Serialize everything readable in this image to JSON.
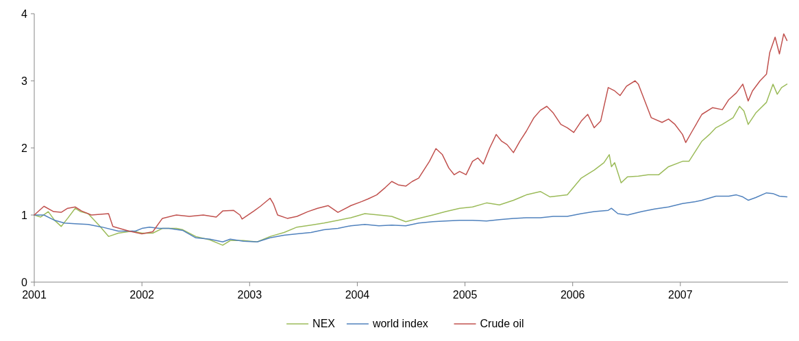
{
  "chart_data": {
    "type": "line",
    "xlim": [
      2001,
      2008
    ],
    "xticks": [
      2001,
      2002,
      2003,
      2004,
      2005,
      2006,
      2007
    ],
    "ylim": [
      0,
      4
    ],
    "yticks": [
      0,
      1,
      2,
      3,
      4
    ],
    "grid": false,
    "legend": "bottom",
    "series": [
      {
        "name": "NEX",
        "color": "#9bbb59",
        "x": [
          2001.0,
          2001.06,
          2001.13,
          2001.19,
          2001.25,
          2001.31,
          2001.38,
          2001.43,
          2001.5,
          2001.6,
          2001.69,
          2001.78,
          2001.91,
          2002.0,
          2002.1,
          2002.19,
          2002.32,
          2002.38,
          2002.5,
          2002.63,
          2002.75,
          2002.82,
          2002.94,
          2003.07,
          2003.19,
          2003.32,
          2003.44,
          2003.57,
          2003.69,
          2003.82,
          2003.94,
          2004.07,
          2004.2,
          2004.32,
          2004.45,
          2004.57,
          2004.7,
          2004.82,
          2004.95,
          2005.07,
          2005.2,
          2005.32,
          2005.45,
          2005.57,
          2005.7,
          2005.79,
          2005.95,
          2006.08,
          2006.2,
          2006.29,
          2006.34,
          2006.36,
          2006.39,
          2006.45,
          2006.51,
          2006.61,
          2006.7,
          2006.8,
          2006.89,
          2007.02,
          2007.08,
          2007.14,
          2007.2,
          2007.27,
          2007.33,
          2007.39,
          2007.49,
          2007.55,
          2007.59,
          2007.63,
          2007.7,
          2007.8,
          2007.86,
          2007.9,
          2007.94,
          2007.99
        ],
        "values": [
          1.0,
          0.97,
          1.05,
          0.92,
          0.83,
          0.95,
          1.1,
          1.05,
          1.02,
          0.85,
          0.68,
          0.73,
          0.76,
          0.73,
          0.73,
          0.8,
          0.8,
          0.78,
          0.68,
          0.63,
          0.55,
          0.62,
          0.62,
          0.6,
          0.68,
          0.74,
          0.82,
          0.85,
          0.88,
          0.92,
          0.96,
          1.02,
          1.0,
          0.98,
          0.9,
          0.95,
          1.0,
          1.05,
          1.1,
          1.12,
          1.18,
          1.15,
          1.22,
          1.3,
          1.35,
          1.27,
          1.3,
          1.55,
          1.67,
          1.78,
          1.9,
          1.72,
          1.78,
          1.48,
          1.57,
          1.58,
          1.6,
          1.6,
          1.72,
          1.8,
          1.8,
          1.95,
          2.1,
          2.2,
          2.3,
          2.35,
          2.45,
          2.62,
          2.55,
          2.35,
          2.52,
          2.68,
          2.95,
          2.8,
          2.9,
          2.95
        ]
      },
      {
        "name": "world index",
        "color": "#4f81bd",
        "x": [
          2001.0,
          2001.09,
          2001.19,
          2001.28,
          2001.38,
          2001.5,
          2001.63,
          2001.78,
          2001.94,
          2002.0,
          2002.07,
          2002.16,
          2002.25,
          2002.38,
          2002.5,
          2002.63,
          2002.75,
          2002.82,
          2002.94,
          2003.07,
          2003.19,
          2003.32,
          2003.44,
          2003.57,
          2003.69,
          2003.82,
          2003.94,
          2004.07,
          2004.2,
          2004.32,
          2004.45,
          2004.57,
          2004.7,
          2004.82,
          2004.95,
          2005.07,
          2005.2,
          2005.32,
          2005.45,
          2005.57,
          2005.7,
          2005.82,
          2005.95,
          2006.08,
          2006.2,
          2006.33,
          2006.36,
          2006.42,
          2006.51,
          2006.64,
          2006.76,
          2006.89,
          2007.02,
          2007.14,
          2007.2,
          2007.33,
          2007.45,
          2007.52,
          2007.58,
          2007.63,
          2007.7,
          2007.8,
          2007.86,
          2007.92,
          2007.99
        ],
        "values": [
          1.0,
          1.0,
          0.92,
          0.88,
          0.87,
          0.86,
          0.82,
          0.76,
          0.76,
          0.8,
          0.82,
          0.8,
          0.8,
          0.77,
          0.66,
          0.64,
          0.6,
          0.64,
          0.61,
          0.6,
          0.66,
          0.7,
          0.72,
          0.74,
          0.78,
          0.8,
          0.84,
          0.86,
          0.84,
          0.85,
          0.84,
          0.88,
          0.9,
          0.91,
          0.92,
          0.92,
          0.91,
          0.93,
          0.95,
          0.96,
          0.96,
          0.98,
          0.98,
          1.02,
          1.05,
          1.07,
          1.1,
          1.02,
          1.0,
          1.05,
          1.09,
          1.12,
          1.17,
          1.2,
          1.22,
          1.28,
          1.28,
          1.3,
          1.27,
          1.22,
          1.26,
          1.33,
          1.32,
          1.28,
          1.27
        ]
      },
      {
        "name": "Crude oil",
        "color": "#c0504d",
        "x": [
          2001.0,
          2001.09,
          2001.18,
          2001.25,
          2001.31,
          2001.38,
          2001.44,
          2001.53,
          2001.69,
          2001.73,
          2001.88,
          2002.0,
          2002.1,
          2002.19,
          2002.32,
          2002.44,
          2002.57,
          2002.69,
          2002.75,
          2002.85,
          2002.91,
          2002.93,
          2003.04,
          2003.1,
          2003.19,
          2003.22,
          2003.26,
          2003.35,
          2003.44,
          2003.54,
          2003.63,
          2003.73,
          2003.82,
          2003.94,
          2004.04,
          2004.1,
          2004.18,
          2004.26,
          2004.32,
          2004.38,
          2004.45,
          2004.51,
          2004.57,
          2004.67,
          2004.73,
          2004.79,
          2004.85,
          2004.9,
          2004.95,
          2005.01,
          2005.07,
          2005.12,
          2005.17,
          2005.23,
          2005.29,
          2005.34,
          2005.39,
          2005.45,
          2005.51,
          2005.57,
          2005.64,
          2005.7,
          2005.76,
          2005.82,
          2005.89,
          2005.95,
          2006.01,
          2006.08,
          2006.14,
          2006.2,
          2006.26,
          2006.33,
          2006.39,
          2006.44,
          2006.5,
          2006.58,
          2006.61,
          2006.67,
          2006.73,
          2006.83,
          2006.89,
          2006.95,
          2007.02,
          2007.05,
          2007.11,
          2007.2,
          2007.3,
          2007.39,
          2007.45,
          2007.52,
          2007.58,
          2007.63,
          2007.67,
          2007.74,
          2007.8,
          2007.83,
          2007.88,
          2007.92,
          2007.96,
          2007.99
        ],
        "values": [
          1.0,
          1.13,
          1.05,
          1.04,
          1.1,
          1.12,
          1.06,
          1.0,
          1.02,
          0.83,
          0.76,
          0.72,
          0.75,
          0.95,
          1.0,
          0.98,
          1.0,
          0.97,
          1.06,
          1.07,
          1.0,
          0.94,
          1.06,
          1.13,
          1.25,
          1.17,
          1.0,
          0.95,
          0.98,
          1.05,
          1.1,
          1.14,
          1.04,
          1.14,
          1.2,
          1.24,
          1.3,
          1.41,
          1.5,
          1.45,
          1.43,
          1.5,
          1.55,
          1.8,
          1.99,
          1.9,
          1.7,
          1.6,
          1.65,
          1.6,
          1.8,
          1.85,
          1.76,
          2.0,
          2.2,
          2.1,
          2.05,
          1.93,
          2.1,
          2.25,
          2.45,
          2.56,
          2.62,
          2.52,
          2.35,
          2.3,
          2.23,
          2.4,
          2.5,
          2.3,
          2.4,
          2.9,
          2.85,
          2.78,
          2.92,
          3.0,
          2.95,
          2.7,
          2.45,
          2.38,
          2.43,
          2.35,
          2.2,
          2.08,
          2.25,
          2.5,
          2.6,
          2.57,
          2.72,
          2.82,
          2.95,
          2.7,
          2.85,
          3.0,
          3.1,
          3.42,
          3.65,
          3.4,
          3.7,
          3.6
        ]
      }
    ]
  }
}
